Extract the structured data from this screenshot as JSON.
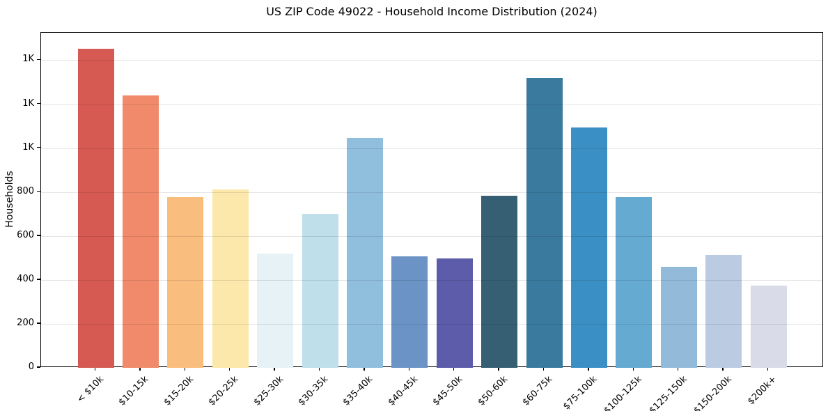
{
  "page": {
    "background_color": "#ffffff",
    "text_color": "#000000"
  },
  "chart_data": {
    "type": "bar",
    "title": "US ZIP Code 49022 - Household Income Distribution (2024)",
    "xlabel": "",
    "ylabel": "Households",
    "categories": [
      "< $10k",
      "$10-15k",
      "$15-20k",
      "$20-25k",
      "$25-30k",
      "$30-35k",
      "$35-40k",
      "$40-45k",
      "$45-50k",
      "$50-60k",
      "$60-75k",
      "$75-100k",
      "$100-125k",
      "$125-150k",
      "$150-200k",
      "$200k+"
    ],
    "values": [
      1452,
      1239,
      776,
      812,
      521,
      700,
      1046,
      506,
      498,
      783,
      1318,
      1093,
      776,
      459,
      514,
      375
    ],
    "bar_colors": [
      "#d65a52",
      "#f18a6a",
      "#f9bd7d",
      "#fce8ab",
      "#e7f2f6",
      "#bfdfea",
      "#90bedd",
      "#6b93c6",
      "#5c5caa",
      "#375f74",
      "#3a7a9e",
      "#3a90c5",
      "#64aad1",
      "#94bada",
      "#bacbe2",
      "#d9dbe9"
    ],
    "ylim": [
      0,
      1525
    ],
    "yticks": [
      0,
      200,
      400,
      600,
      800,
      1000,
      1200,
      1400
    ],
    "ytick_labels": [
      "0",
      "200",
      "400",
      "600",
      "800",
      "1K",
      "1K",
      "1K"
    ],
    "grid": "horizontal",
    "grid_above_bars": true,
    "legend_position": "none",
    "xtick_label_rotation_deg": 45,
    "frame_color": "#000000",
    "gridline_color": "#e6e6e6"
  }
}
